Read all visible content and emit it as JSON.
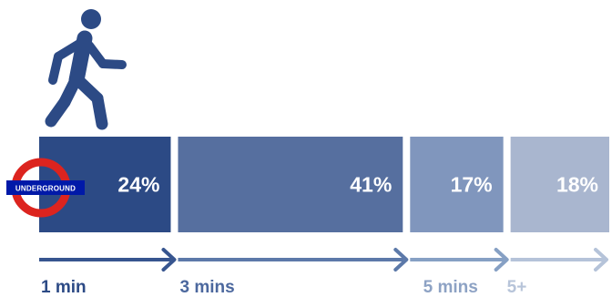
{
  "chart_data": {
    "type": "bar",
    "orientation": "horizontal-stacked",
    "categories": [
      "1 min",
      "3 mins",
      "5 mins",
      "5+"
    ],
    "values": [
      24,
      41,
      17,
      18
    ],
    "data_labels": [
      "24%",
      "41%",
      "17%",
      "18%"
    ],
    "value_unit": "%",
    "axis_labels": [
      "1 min",
      "3 mins",
      "5 mins",
      "5+"
    ],
    "title": "",
    "xlabel": "",
    "ylabel": ""
  },
  "logo": {
    "text": "UNDERGROUND"
  },
  "icon": "walking-person-icon",
  "colors": {
    "segments": [
      "#2c4a85",
      "#566f9f",
      "#8096bd",
      "#a9b6cf"
    ],
    "arrows": [
      "#37558f",
      "#5c79a9",
      "#86a0c4",
      "#b5c3d9"
    ],
    "labels": [
      "#2c4a85",
      "#4c689e",
      "#8da2c4",
      "#b7c4d9"
    ],
    "logo_ring": "#dc241f",
    "logo_bar": "#0019a8"
  }
}
